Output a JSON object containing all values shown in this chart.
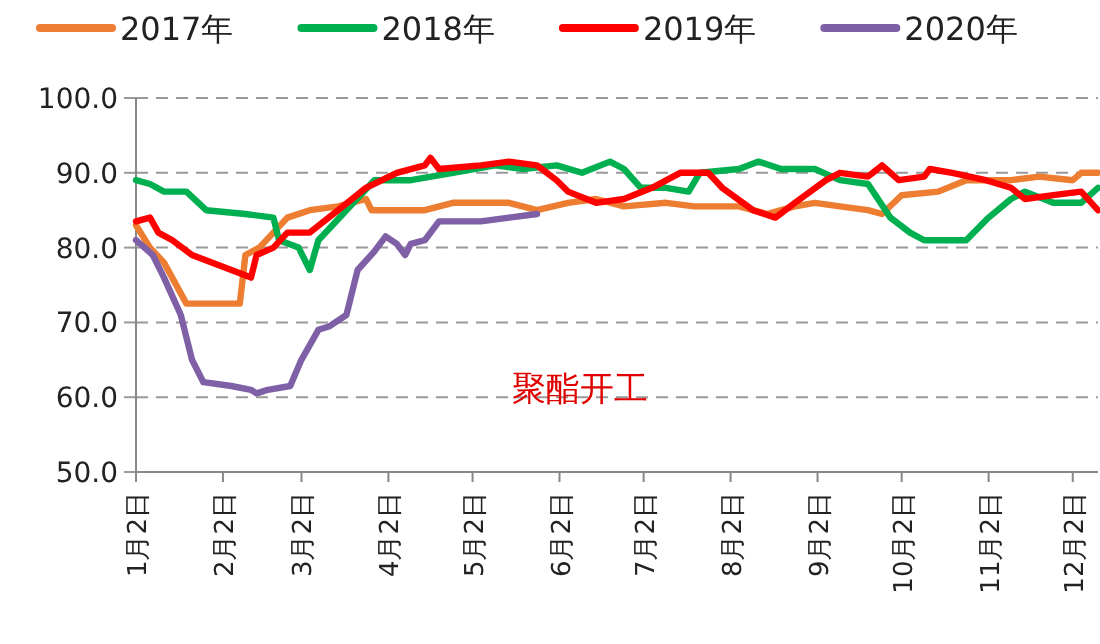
{
  "chart_data": {
    "type": "line",
    "xlim": [
      "--01-02",
      "--12-11"
    ],
    "xticks": [
      {
        "value": "--01-02",
        "label": "1月2日"
      },
      {
        "value": "--02-02",
        "label": "2月2日"
      },
      {
        "value": "--03-02",
        "label": "3月2日"
      },
      {
        "value": "--04-02",
        "label": "4月2日"
      },
      {
        "value": "--05-02",
        "label": "5月2日"
      },
      {
        "value": "--06-02",
        "label": "6月2日"
      },
      {
        "value": "--07-02",
        "label": "7月2日"
      },
      {
        "value": "--08-02",
        "label": "8月2日"
      },
      {
        "value": "--09-02",
        "label": "9月2日"
      },
      {
        "value": "--10-02",
        "label": "10月2日"
      },
      {
        "value": "--11-02",
        "label": "11月2日"
      },
      {
        "value": "--12-02",
        "label": "12月2日"
      }
    ],
    "ylim": [
      50,
      100
    ],
    "yticks": [
      {
        "value": 50,
        "label": "50.0"
      },
      {
        "value": 60,
        "label": "60.0"
      },
      {
        "value": 70,
        "label": "70.0"
      },
      {
        "value": 80,
        "label": "80.0"
      },
      {
        "value": 90,
        "label": "90.0"
      },
      {
        "value": 100,
        "label": "100.0"
      }
    ],
    "grid": "y",
    "legend": "top",
    "marker": "none",
    "line_style": "solid",
    "annotations": [
      "聚酯开工"
    ],
    "series": [
      {
        "name": "2017年",
        "color": "#ed7d31",
        "x": [
          "--01-02",
          "--01-07",
          "--01-12",
          "--01-20",
          "--02-08",
          "--02-10",
          "--02-15",
          "--02-25",
          "--03-05",
          "--03-15",
          "--03-25",
          "--03-27",
          "--04-15",
          "--04-25",
          "--05-15",
          "--05-25",
          "--06-05",
          "--06-15",
          "--06-25",
          "--07-10",
          "--07-20",
          "--08-05",
          "--08-15",
          "--08-20",
          "--08-25",
          "--09-01",
          "--09-10",
          "--09-20",
          "--09-25",
          "--10-02",
          "--10-15",
          "--10-25",
          "--11-10",
          "--11-20",
          "--12-02",
          "--12-05",
          "--12-11"
        ],
        "values": [
          83,
          80,
          78,
          72.5,
          72.5,
          79,
          80,
          84,
          85,
          85.5,
          86.5,
          85,
          85,
          86,
          86,
          85,
          86,
          86.5,
          85.5,
          86,
          85.5,
          85.5,
          84.5,
          85,
          85.5,
          86,
          85.5,
          85,
          84.5,
          87,
          87.5,
          89,
          89,
          89.5,
          89,
          90,
          90
        ]
      },
      {
        "name": "2018年",
        "color": "#00b050",
        "x": [
          "--01-02",
          "--01-07",
          "--01-12",
          "--01-20",
          "--01-27",
          "--02-10",
          "--02-20",
          "--02-22",
          "--03-01",
          "--03-05",
          "--03-08",
          "--03-18",
          "--03-28",
          "--04-10",
          "--04-25",
          "--05-10",
          "--05-20",
          "--06-01",
          "--06-10",
          "--06-20",
          "--06-25",
          "--07-01",
          "--07-10",
          "--07-18",
          "--07-22",
          "--08-05",
          "--08-12",
          "--08-20",
          "--09-01",
          "--09-10",
          "--09-20",
          "--09-28",
          "--10-05",
          "--10-10",
          "--10-25",
          "--11-02",
          "--11-10",
          "--11-15",
          "--11-25",
          "--12-05",
          "--12-11"
        ],
        "values": [
          89,
          88.5,
          87.5,
          87.5,
          85,
          84.5,
          84,
          81,
          80,
          77,
          81,
          85,
          89,
          89,
          90,
          91,
          90.5,
          91,
          90,
          91.5,
          90.5,
          88,
          88,
          87.5,
          90,
          90.5,
          91.5,
          90.5,
          90.5,
          89,
          88.5,
          84,
          82,
          81,
          81,
          84,
          86.5,
          87.5,
          86,
          86,
          88
        ]
      },
      {
        "name": "2019年",
        "color": "#ff0000",
        "x": [
          "--01-02",
          "--01-07",
          "--01-10",
          "--01-15",
          "--01-22",
          "--02-05",
          "--02-12",
          "--02-14",
          "--02-20",
          "--02-25",
          "--03-05",
          "--03-15",
          "--03-25",
          "--04-05",
          "--04-15",
          "--04-17",
          "--04-20",
          "--05-05",
          "--05-15",
          "--05-25",
          "--06-01",
          "--06-05",
          "--06-15",
          "--06-25",
          "--07-05",
          "--07-15",
          "--07-25",
          "--07-30",
          "--08-10",
          "--08-18",
          "--08-25",
          "--09-05",
          "--09-10",
          "--09-20",
          "--09-25",
          "--10-01",
          "--10-10",
          "--10-12",
          "--10-20",
          "--11-01",
          "--11-10",
          "--11-15",
          "--11-25",
          "--12-05",
          "--12-11"
        ],
        "values": [
          83.5,
          84,
          82,
          81,
          79,
          77,
          76,
          79,
          80,
          82,
          82,
          85,
          88,
          90,
          91,
          92,
          90.5,
          91,
          91.5,
          91,
          89,
          87.5,
          86,
          86.5,
          88,
          90,
          90,
          88,
          85,
          84,
          86,
          89,
          90,
          89.5,
          91,
          89,
          89.5,
          90.5,
          90,
          89,
          88,
          86.5,
          87,
          87.5,
          85
        ]
      },
      {
        "name": "2020年",
        "color": "#7f5fa6",
        "x": [
          "--01-02",
          "--01-08",
          "--01-12",
          "--01-18",
          "--01-22",
          "--01-26",
          "--02-05",
          "--02-12",
          "--02-14",
          "--02-18",
          "--02-26",
          "--03-02",
          "--03-08",
          "--03-12",
          "--03-18",
          "--03-22",
          "--03-28",
          "--04-01",
          "--04-05",
          "--04-08",
          "--04-10",
          "--04-15",
          "--04-20",
          "--05-05",
          "--05-15",
          "--05-25"
        ],
        "values": [
          81,
          79,
          76,
          71,
          65,
          62,
          61.5,
          61,
          60.5,
          61,
          61.5,
          65,
          69,
          69.5,
          71,
          77,
          79.5,
          81.5,
          80.5,
          79,
          80.5,
          81,
          83.5,
          83.5,
          84,
          84.5
        ]
      }
    ]
  }
}
